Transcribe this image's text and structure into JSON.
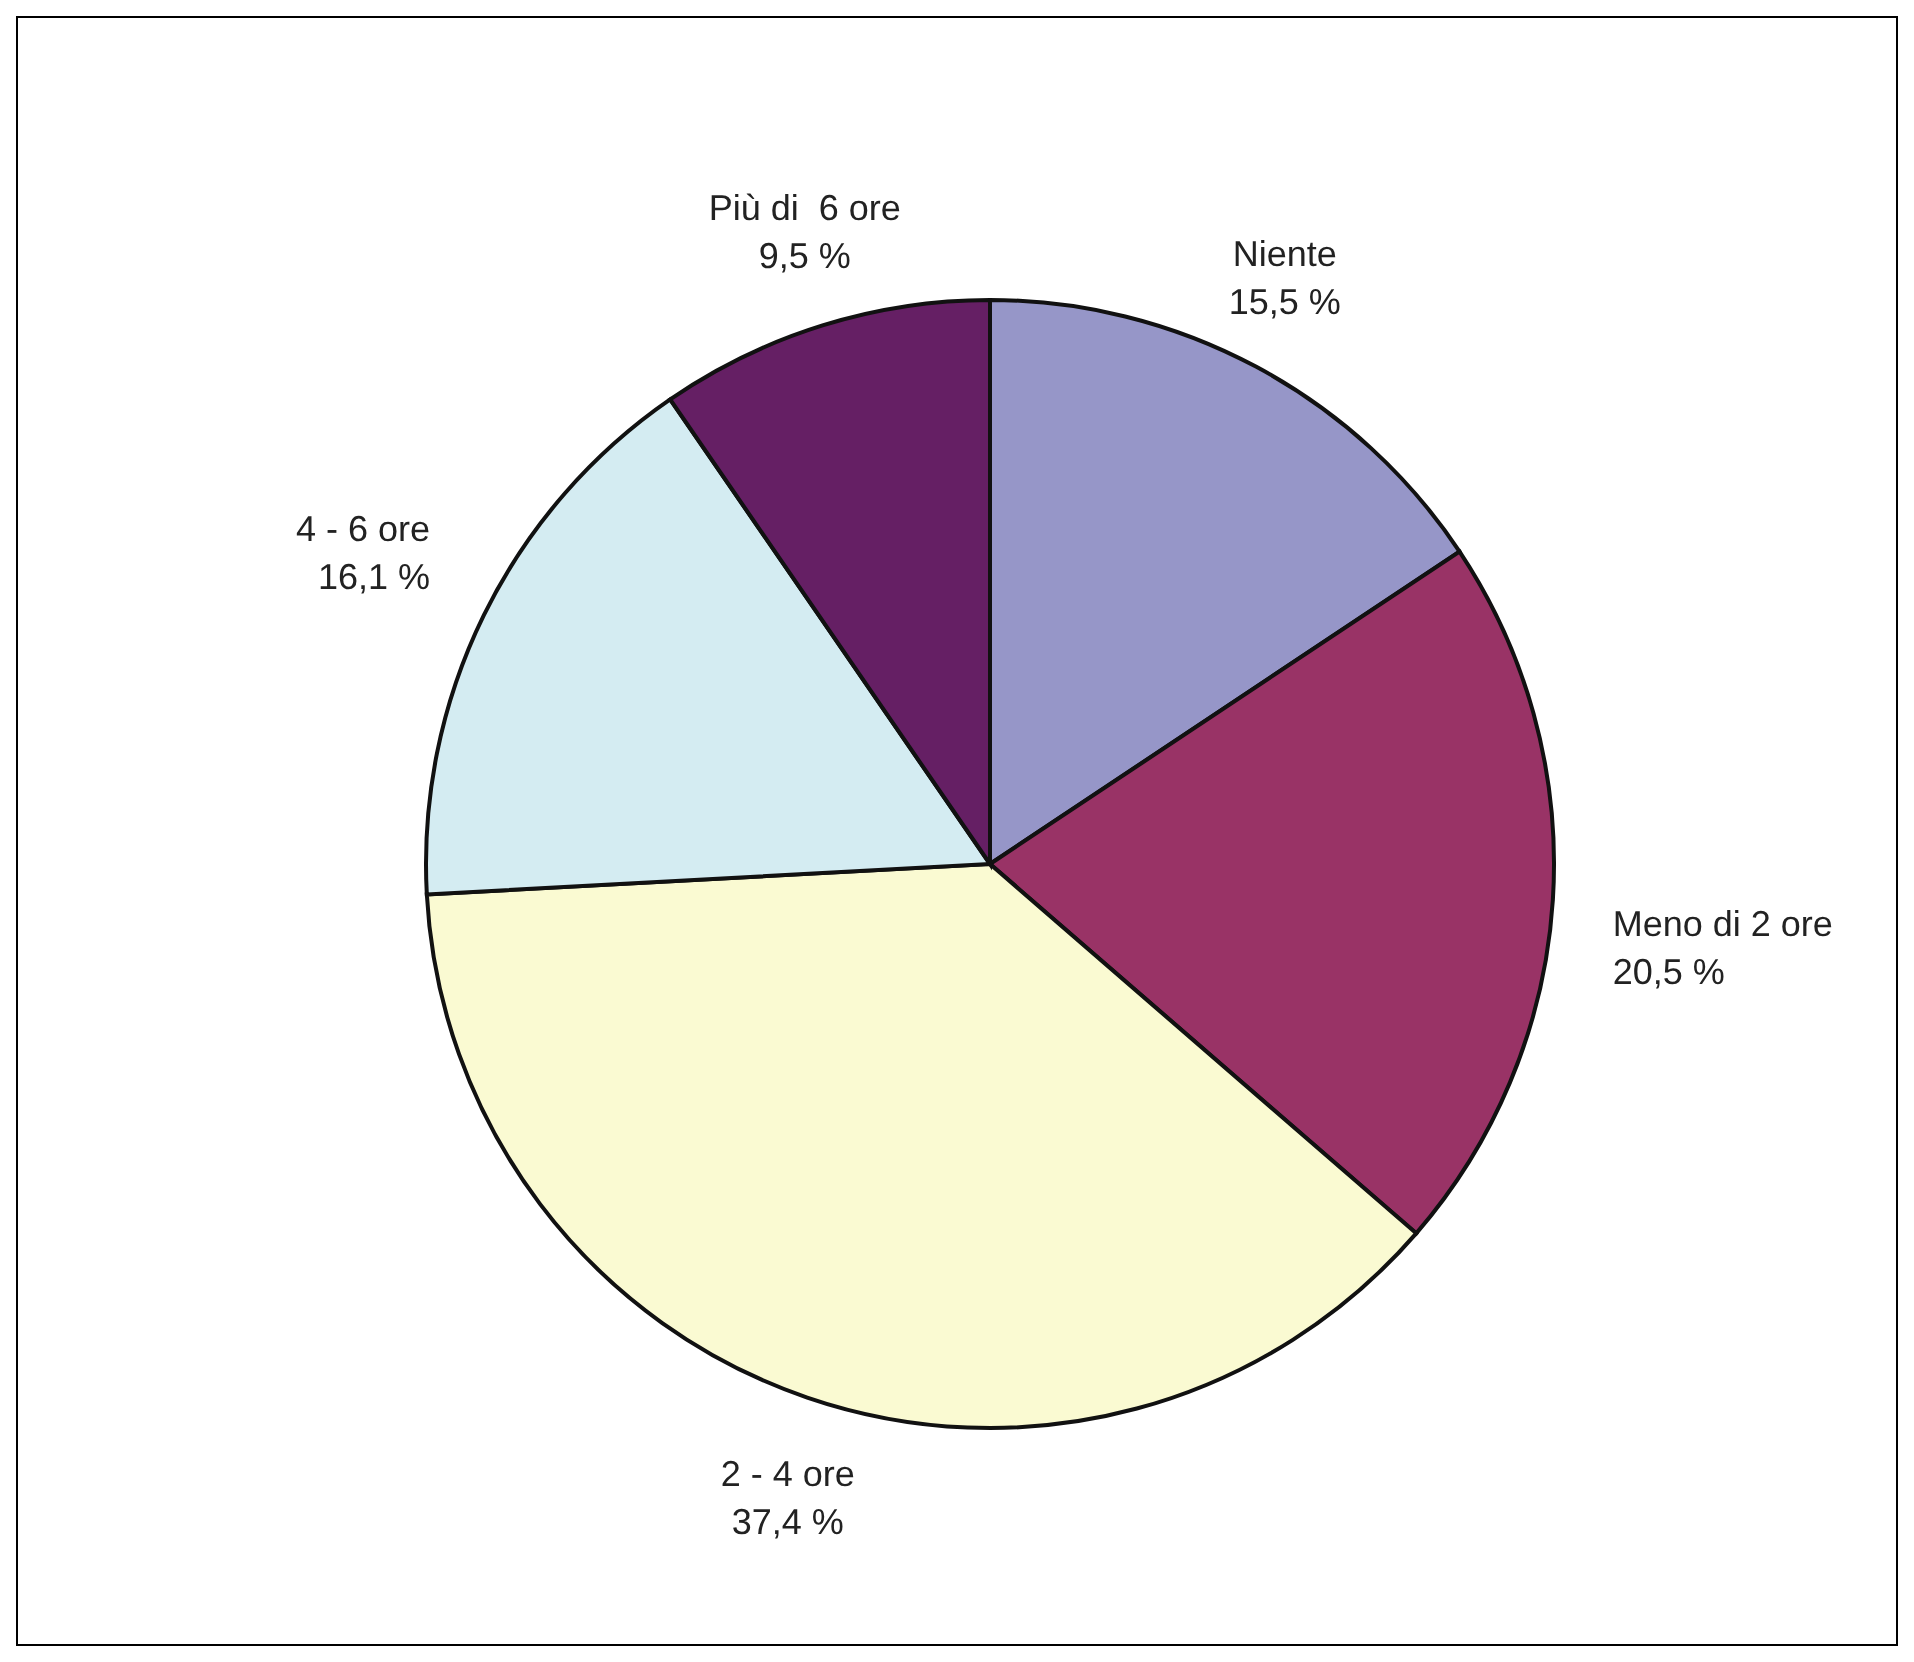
{
  "chart_data": {
    "type": "pie",
    "categories": [
      "Niente",
      "Meno di 2 ore",
      "2 - 4 ore",
      "4 - 6 ore",
      "Più di  6 ore"
    ],
    "values": [
      15.5,
      20.5,
      37.4,
      16.1,
      9.5
    ],
    "value_labels": [
      "15,5 %",
      "20,5 %",
      "37,4 %",
      "16,1 %",
      "9,5 %"
    ],
    "colors": [
      "#9696c8",
      "#993366",
      "#fafad2",
      "#d4ecf2",
      "#651f64"
    ]
  }
}
